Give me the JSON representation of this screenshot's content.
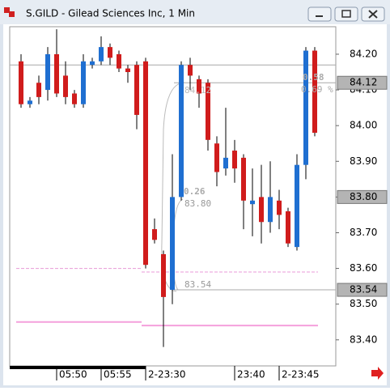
{
  "window_title": "S.GILD - Gilead Sciences Inc, 1 Min",
  "chart_data": {
    "type": "candlestick",
    "categories": [
      null,
      null,
      null,
      null,
      "05:50",
      null,
      null,
      null,
      null,
      "05:55",
      null,
      null,
      null,
      null,
      "2-23:30",
      null,
      null,
      null,
      null,
      null,
      null,
      null,
      null,
      null,
      "23:40",
      null,
      null,
      null,
      null,
      "2-23:45",
      null,
      null,
      null,
      null
    ],
    "open": [
      84.18,
      84.06,
      84.12,
      84.1,
      84.2,
      84.14,
      84.09,
      84.06,
      84.17,
      84.18,
      84.22,
      84.2,
      84.16,
      84.17,
      84.18,
      83.71,
      83.64,
      83.54,
      83.8,
      84.17,
      84.13,
      84.12,
      83.95,
      83.88,
      83.93,
      83.91,
      83.78,
      83.8,
      83.73,
      83.79,
      83.76,
      83.66,
      83.89,
      84.21
    ],
    "high": [
      84.2,
      84.08,
      84.14,
      84.22,
      84.27,
      84.18,
      84.1,
      84.2,
      84.19,
      84.25,
      84.23,
      84.21,
      84.17,
      84.18,
      84.19,
      83.74,
      83.65,
      83.92,
      84.18,
      84.19,
      84.14,
      84.13,
      83.97,
      84.05,
      83.96,
      83.92,
      83.88,
      83.89,
      83.9,
      83.82,
      83.77,
      83.92,
      84.22,
      84.22
    ],
    "low": [
      84.05,
      84.05,
      84.06,
      84.07,
      84.08,
      84.06,
      84.05,
      84.05,
      84.16,
      84.17,
      84.17,
      84.15,
      84.12,
      83.99,
      83.6,
      83.67,
      83.38,
      83.5,
      83.79,
      84.1,
      84.05,
      83.93,
      83.83,
      83.86,
      83.84,
      83.71,
      83.69,
      83.67,
      83.7,
      83.71,
      83.66,
      83.65,
      83.85,
      83.97
    ],
    "close": [
      84.06,
      84.07,
      84.08,
      84.2,
      84.09,
      84.08,
      84.06,
      84.18,
      84.18,
      84.22,
      84.19,
      84.16,
      84.15,
      84.03,
      83.61,
      83.68,
      83.52,
      83.8,
      84.17,
      84.14,
      84.09,
      83.96,
      83.87,
      83.91,
      83.88,
      83.79,
      83.79,
      83.73,
      83.8,
      83.75,
      83.67,
      83.89,
      84.21,
      83.98
    ],
    "up_color": "#1f6fd1",
    "down_color": "#d01c1c",
    "ylim": [
      83.327,
      84.277
    ],
    "yticks": [
      {
        "value": 83.4,
        "label": "83.40"
      },
      {
        "value": 83.5,
        "label": "83.50"
      },
      {
        "value": 83.6,
        "label": "83.60"
      },
      {
        "value": 83.7,
        "label": "83.70"
      },
      {
        "value": 83.8,
        "label": "83.80"
      },
      {
        "value": 83.9,
        "label": "83.90"
      },
      {
        "value": 84.0,
        "label": "84.00"
      },
      {
        "value": 84.1,
        "label": "84.10"
      },
      {
        "value": 84.2,
        "label": "84.20"
      }
    ],
    "levels": [
      {
        "value": 84.17,
        "color": "#a8a8a8"
      },
      {
        "value": 84.12,
        "color": "#a8a8a8"
      },
      {
        "value": 83.54,
        "color": "#a8a8a8"
      },
      {
        "value": 83.6,
        "color": "#e89ad8"
      },
      {
        "value": 83.59,
        "color": "#e89ad8"
      },
      {
        "value": 83.45,
        "color": "#f4a0dc"
      },
      {
        "value": 83.44,
        "color": "#f4a0dc"
      }
    ],
    "price_tags": [
      {
        "value": 84.12,
        "label": "84.12"
      },
      {
        "value": 83.8,
        "label": "83.80"
      },
      {
        "value": 83.54,
        "label": "83.54"
      }
    ],
    "annotations": [
      "0.58",
      "0.69 %",
      "84.12",
      "0.26",
      "83.80",
      "83.54"
    ]
  }
}
